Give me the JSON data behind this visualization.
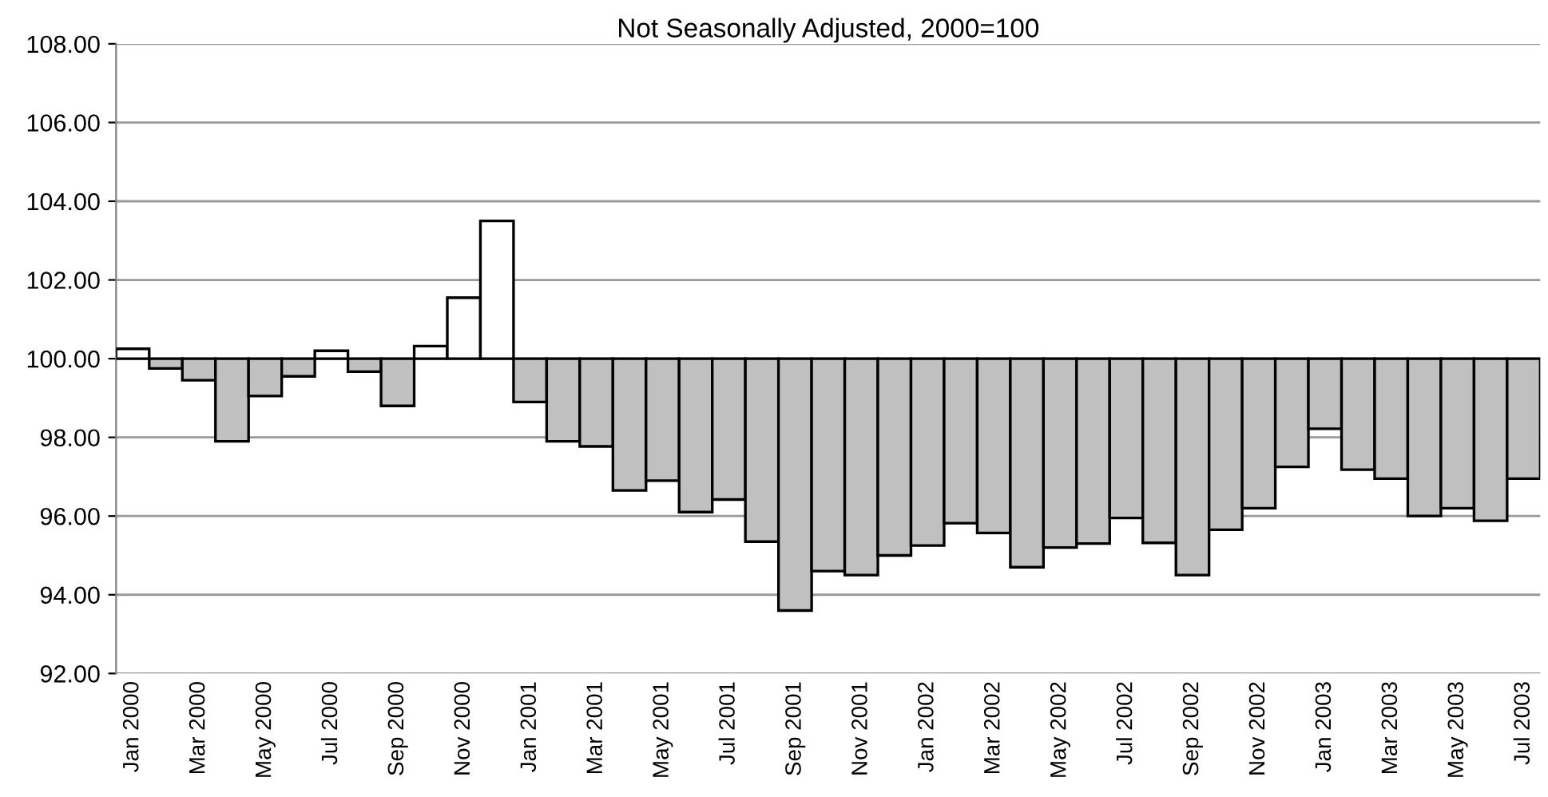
{
  "chart_data": {
    "type": "bar",
    "title": "Not Seasonally Adjusted, 2000=100",
    "categories": [
      "Jan 2000",
      null,
      "Mar 2000",
      null,
      "May 2000",
      null,
      "Jul 2000",
      null,
      "Sep 2000",
      null,
      "Nov 2000",
      null,
      "Jan 2001",
      null,
      "Mar 2001",
      null,
      "May 2001",
      null,
      "Jul 2001",
      null,
      "Sep 2001",
      null,
      "Nov 2001",
      null,
      "Jan 2002",
      null,
      "Mar 2002",
      null,
      "May 2002",
      null,
      "Jul 2002",
      null,
      "Sep 2002",
      null,
      "Nov 2002",
      null,
      "Jan 2003",
      null,
      "Mar 2003",
      null,
      "May 2003",
      null,
      "Jul 2003"
    ],
    "base": [
      100,
      100,
      100,
      100,
      100,
      100,
      100,
      100,
      100,
      100,
      100,
      100,
      100,
      100,
      100,
      100,
      100,
      100,
      100,
      100,
      100,
      100,
      100,
      100,
      100,
      100,
      100,
      100,
      100,
      100,
      100,
      100,
      100,
      100,
      100,
      100,
      100,
      100,
      100,
      100,
      100,
      100,
      100
    ],
    "values": [
      0.25,
      -0.25,
      -0.55,
      -2.1,
      -0.95,
      -0.45,
      0.2,
      -0.33,
      -1.2,
      0.32,
      1.55,
      3.5,
      -1.1,
      -2.1,
      -2.23,
      -3.35,
      -3.1,
      -3.9,
      -3.58,
      -4.65,
      -6.4,
      -5.4,
      -5.5,
      -5.0,
      -4.75,
      -4.18,
      -4.43,
      -5.3,
      -4.8,
      -4.7,
      -4.05,
      -4.68,
      -5.5,
      -4.35,
      -3.8,
      -2.75,
      -1.78,
      -2.82,
      -3.05,
      -4.0,
      -3.8,
      -4.12,
      -3.05
    ],
    "colors": [
      "#ffffff",
      "#c0c0c0",
      "#c0c0c0",
      "#c0c0c0",
      "#c0c0c0",
      "#c0c0c0",
      "#ffffff",
      "#c0c0c0",
      "#c0c0c0",
      "#ffffff",
      "#ffffff",
      "#ffffff",
      "#c0c0c0",
      "#c0c0c0",
      "#c0c0c0",
      "#c0c0c0",
      "#c0c0c0",
      "#c0c0c0",
      "#c0c0c0",
      "#c0c0c0",
      "#c0c0c0",
      "#c0c0c0",
      "#c0c0c0",
      "#c0c0c0",
      "#c0c0c0",
      "#c0c0c0",
      "#c0c0c0",
      "#c0c0c0",
      "#c0c0c0",
      "#c0c0c0",
      "#c0c0c0",
      "#c0c0c0",
      "#c0c0c0",
      "#c0c0c0",
      "#c0c0c0",
      "#c0c0c0",
      "#c0c0c0",
      "#c0c0c0",
      "#c0c0c0",
      "#c0c0c0",
      "#c0c0c0",
      "#c0c0c0",
      "#c0c0c0"
    ],
    "ylim": [
      92,
      108
    ],
    "yticks": [
      {
        "value": 92,
        "label": "92.00"
      },
      {
        "value": 94,
        "label": "94.00"
      },
      {
        "value": 96,
        "label": "96.00"
      },
      {
        "value": 98,
        "label": "98.00"
      },
      {
        "value": 100,
        "label": "100.00"
      },
      {
        "value": 102,
        "label": "102.00"
      },
      {
        "value": 104,
        "label": "104.00"
      },
      {
        "value": 106,
        "label": "106.00"
      },
      {
        "value": 108,
        "label": "108.00"
      }
    ],
    "grid": "y",
    "legend": false
  }
}
